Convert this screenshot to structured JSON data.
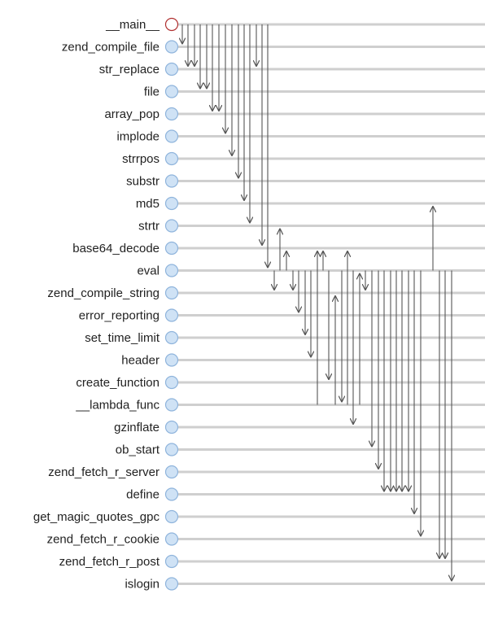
{
  "functions": [
    "__main__",
    "zend_compile_file",
    "str_replace",
    "file",
    "array_pop",
    "implode",
    "strrpos",
    "substr",
    "md5",
    "strtr",
    "base64_decode",
    "eval",
    "zend_compile_string",
    "error_reporting",
    "set_time_limit",
    "header",
    "create_function",
    "__lambda_func",
    "gzinflate",
    "ob_start",
    "zend_fetch_r_server",
    "define",
    "get_magic_quotes_gpc",
    "zend_fetch_r_cookie",
    "zend_fetch_r_post",
    "islogin"
  ],
  "root_index": 0,
  "calls": [
    {
      "from": 0,
      "to": 1
    },
    {
      "from": 0,
      "to": 2
    },
    {
      "from": 0,
      "to": 2
    },
    {
      "from": 0,
      "to": 3
    },
    {
      "from": 0,
      "to": 3
    },
    {
      "from": 0,
      "to": 4
    },
    {
      "from": 0,
      "to": 4
    },
    {
      "from": 0,
      "to": 5
    },
    {
      "from": 0,
      "to": 6
    },
    {
      "from": 0,
      "to": 7
    },
    {
      "from": 0,
      "to": 8
    },
    {
      "from": 0,
      "to": 9
    },
    {
      "from": 0,
      "to": 2
    },
    {
      "from": 0,
      "to": 10
    },
    {
      "from": 0,
      "to": 11
    },
    {
      "from": 11,
      "to": 12
    },
    {
      "from": 11,
      "to": 9
    },
    {
      "from": 11,
      "to": 10
    },
    {
      "from": 11,
      "to": 12
    },
    {
      "from": 11,
      "to": 13
    },
    {
      "from": 11,
      "to": 14
    },
    {
      "from": 11,
      "to": 15
    },
    {
      "from": 17,
      "to": 10
    },
    {
      "from": 11,
      "to": 10
    },
    {
      "from": 11,
      "to": 16
    },
    {
      "from": 17,
      "to": 12
    },
    {
      "from": 11,
      "to": 17
    },
    {
      "from": 17,
      "to": 10
    },
    {
      "from": 11,
      "to": 18
    },
    {
      "from": 17,
      "to": 11
    },
    {
      "from": 11,
      "to": 12
    },
    {
      "from": 11,
      "to": 19
    },
    {
      "from": 11,
      "to": 20
    },
    {
      "from": 11,
      "to": 21
    },
    {
      "from": 11,
      "to": 21
    },
    {
      "from": 11,
      "to": 21
    },
    {
      "from": 11,
      "to": 21
    },
    {
      "from": 11,
      "to": 21
    },
    {
      "from": 11,
      "to": 22
    },
    {
      "from": 11,
      "to": 23
    },
    {
      "from": 11,
      "to": 11
    },
    {
      "from": 11,
      "to": 8
    },
    {
      "from": 11,
      "to": 24
    },
    {
      "from": 11,
      "to": 24
    },
    {
      "from": 11,
      "to": 25
    }
  ],
  "colors": {
    "root_stroke": "#b03030",
    "root_fill": "#ffffff",
    "node_stroke": "#8fb4dc",
    "node_fill": "#cfe2f5",
    "lane": "#cfcfcf",
    "arrow": "#555555"
  }
}
